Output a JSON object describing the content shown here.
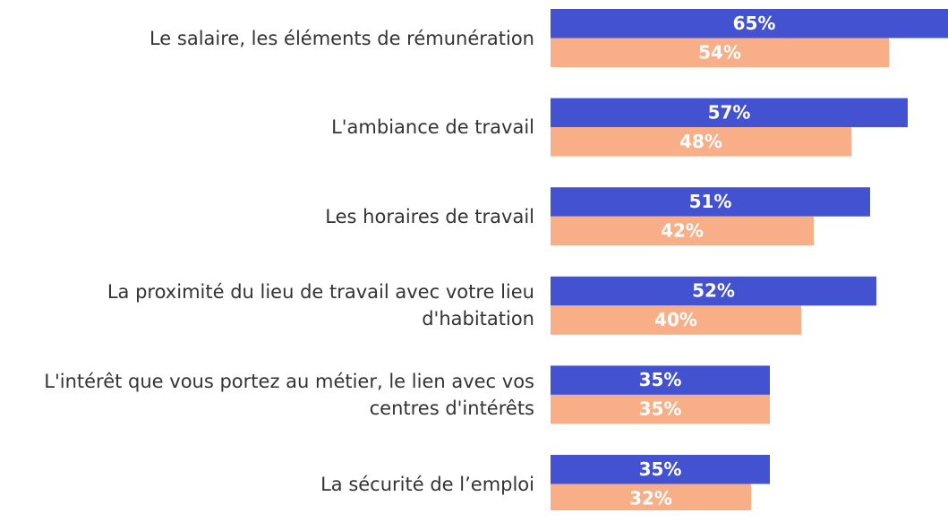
{
  "chart_data": {
    "type": "bar",
    "orientation": "horizontal",
    "categories": [
      "Le salaire, les éléments de rémunération",
      "L'ambiance de travail",
      "Les horaires de travail",
      "La proximité du lieu de travail avec votre lieu d'habitation",
      "L'intérêt que vous portez au métier, le lien avec vos centres d'intérêts",
      "La sécurité de l’emploi"
    ],
    "series": [
      {
        "color": "#4352d1",
        "values": [
          65,
          57,
          51,
          52,
          35,
          35
        ],
        "value_labels": [
          "65%",
          "57%",
          "51%",
          "52%",
          "35%",
          "35%"
        ]
      },
      {
        "color": "#f8ae86",
        "values": [
          54,
          48,
          42,
          40,
          35,
          32
        ],
        "value_labels": [
          "54%",
          "48%",
          "42%",
          "40%",
          "35%",
          "32%"
        ]
      }
    ]
  }
}
